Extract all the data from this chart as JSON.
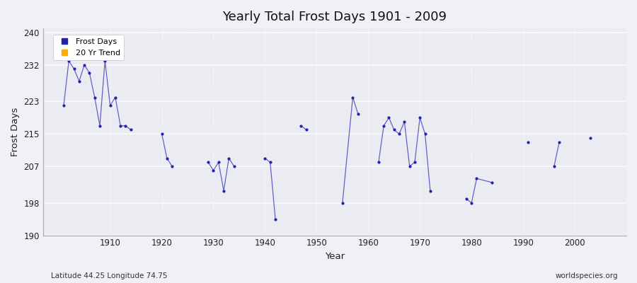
{
  "title": "Yearly Total Frost Days 1901 - 2009",
  "xlabel": "Year",
  "ylabel": "Frost Days",
  "subtitle": "Latitude 44.25 Longitude 74.75",
  "watermark": "worldspecies.org",
  "ylim": [
    190,
    241
  ],
  "yticks": [
    190,
    198,
    207,
    215,
    223,
    232,
    240
  ],
  "xlim": [
    1897,
    2010
  ],
  "xticks": [
    1910,
    1920,
    1930,
    1940,
    1950,
    1960,
    1970,
    1980,
    1990,
    2000
  ],
  "bg_color": "#f0f0f5",
  "plot_bg": "#ebebf2",
  "line_color": "#3333bb",
  "marker_color": "#2222aa",
  "trend_color": "#ffaa00",
  "years": [
    1901,
    1902,
    1903,
    1904,
    1905,
    1906,
    1907,
    1908,
    1909,
    1910,
    1911,
    1912,
    1913,
    1914,
    1920,
    1921,
    1922,
    1929,
    1930,
    1931,
    1932,
    1933,
    1934,
    1940,
    1941,
    1942,
    1947,
    1948,
    1955,
    1957,
    1958,
    1962,
    1963,
    1964,
    1965,
    1966,
    1967,
    1968,
    1969,
    1970,
    1971,
    1972,
    1979,
    1980,
    1981,
    1984,
    1991,
    1996,
    1997,
    2003
  ],
  "frost_days": [
    222,
    233,
    231,
    228,
    232,
    230,
    224,
    217,
    233,
    222,
    224,
    217,
    217,
    216,
    215,
    209,
    207,
    208,
    206,
    208,
    201,
    209,
    207,
    209,
    208,
    194,
    217,
    216,
    198,
    224,
    220,
    208,
    217,
    219,
    216,
    215,
    218,
    207,
    208,
    219,
    215,
    201,
    199,
    198,
    204,
    203,
    213,
    207,
    213,
    214
  ]
}
